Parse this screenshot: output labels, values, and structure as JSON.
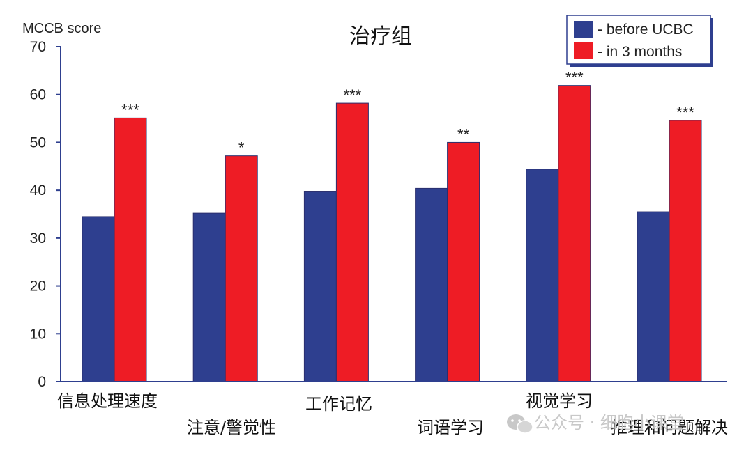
{
  "chart_data": {
    "type": "bar",
    "title": "治疗组",
    "ylabel": "MCCB score",
    "xlabel": "",
    "ylim": [
      0,
      70
    ],
    "yticks": [
      0,
      10,
      20,
      30,
      40,
      50,
      60,
      70
    ],
    "categories": [
      "信息处理速度",
      "注意/警觉性",
      "工作记忆",
      "词语学习",
      "视觉学习",
      "推理和问题解决"
    ],
    "series": [
      {
        "name": "- before UCBC",
        "color": "#2e3f8f",
        "values": [
          34.5,
          35.2,
          39.8,
          40.4,
          44.4,
          35.5
        ]
      },
      {
        "name": "- in 3 months",
        "color": "#ee1c25",
        "values": [
          55.1,
          47.2,
          58.2,
          50.0,
          61.9,
          54.6
        ]
      }
    ],
    "significance": [
      "***",
      "*",
      "***",
      "**",
      "***",
      "***"
    ],
    "legend_position": "top-right",
    "grid": false
  },
  "watermark": {
    "icon": "wechat-icon",
    "text": "公众号 · 细胞小课堂"
  }
}
